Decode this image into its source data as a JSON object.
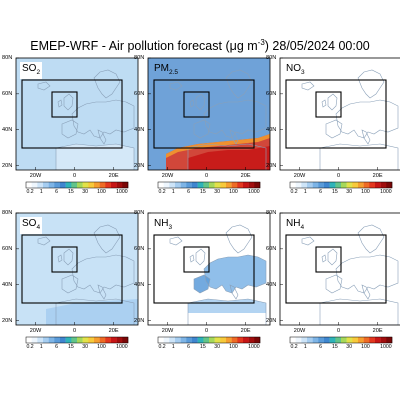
{
  "title": {
    "prefix": "EMEP-WRF - Air pollution forecast (",
    "mu": "μ",
    "unit_mid": "g m",
    "exp": "-3",
    "suffix": ")  28/05/2024 00:00"
  },
  "axes": {
    "lat_ticks": [
      "80N",
      "60N",
      "40N",
      "20N"
    ],
    "lon_ticks": [
      "20W",
      "0",
      "20E"
    ]
  },
  "colorbar": {
    "ticks": [
      "0.2",
      "1",
      "6",
      "15",
      "30",
      "100",
      "1000"
    ],
    "colors": [
      "#ffffff",
      "#eef6fd",
      "#cde4f8",
      "#a6cdf0",
      "#7db4e6",
      "#5a9bd9",
      "#3f86cf",
      "#2fb3b9",
      "#62c48a",
      "#a6d85a",
      "#e2e24a",
      "#f7c93b",
      "#f59e2f",
      "#ee6b25",
      "#e3371f",
      "#c71515",
      "#a10d0d",
      "#7a0707"
    ]
  },
  "panels": [
    {
      "label": "SO",
      "sub": "2",
      "field_color": "#bedcf3"
    },
    {
      "label": "PM",
      "sub": "2.5",
      "field_color": "#6fa2d8"
    },
    {
      "label": "NO",
      "sub": "3",
      "field_color": "#ffffff"
    },
    {
      "label": "SO",
      "sub": "4",
      "field_color": "#c8e2f6"
    },
    {
      "label": "NH",
      "sub": "3",
      "field_color": "#ffffff"
    },
    {
      "label": "NH",
      "sub": "4",
      "field_color": "#ffffff"
    }
  ]
}
